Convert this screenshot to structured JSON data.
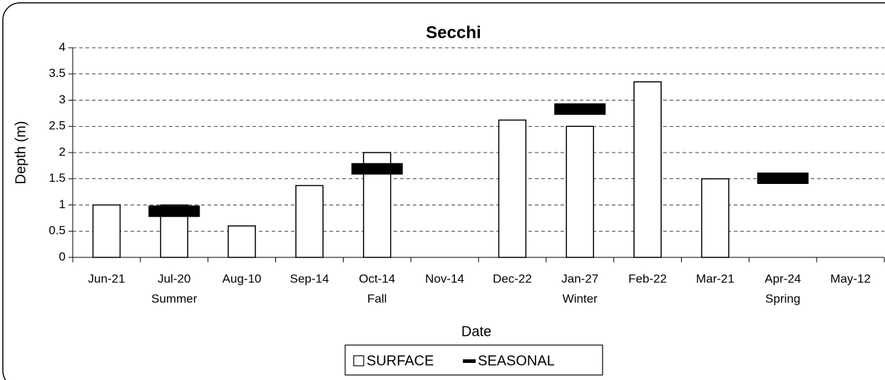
{
  "chart_data": {
    "type": "bar",
    "title": "Secchi",
    "x_label": "Date",
    "y_label": "Depth (m)",
    "categories": [
      "Jun-21",
      "Jul-20",
      "Aug-10",
      "Sep-14",
      "Oct-14",
      "Nov-14",
      "Dec-22",
      "Jan-27",
      "Feb-22",
      "Mar-21",
      "Apr-24",
      "May-12"
    ],
    "category_sublabels": [
      null,
      "Summer",
      null,
      null,
      "Fall",
      null,
      null,
      "Winter",
      null,
      null,
      "Spring",
      null
    ],
    "series": [
      {
        "name": "SURFACE",
        "color": "#ffffff",
        "values": [
          1.0,
          1.0,
          0.6,
          1.37,
          2.0,
          null,
          2.62,
          2.5,
          3.35,
          1.5,
          null,
          null
        ]
      },
      {
        "name": "SEASONAL",
        "color": "#000000",
        "values": [
          null,
          0.88,
          null,
          null,
          1.69,
          null,
          null,
          2.83,
          null,
          null,
          1.51,
          null
        ]
      }
    ],
    "ylim": [
      0,
      4
    ],
    "yticks": [
      0,
      0.5,
      1,
      1.5,
      2,
      2.5,
      3,
      3.5,
      4
    ],
    "grid": true,
    "legend": "bottom"
  }
}
